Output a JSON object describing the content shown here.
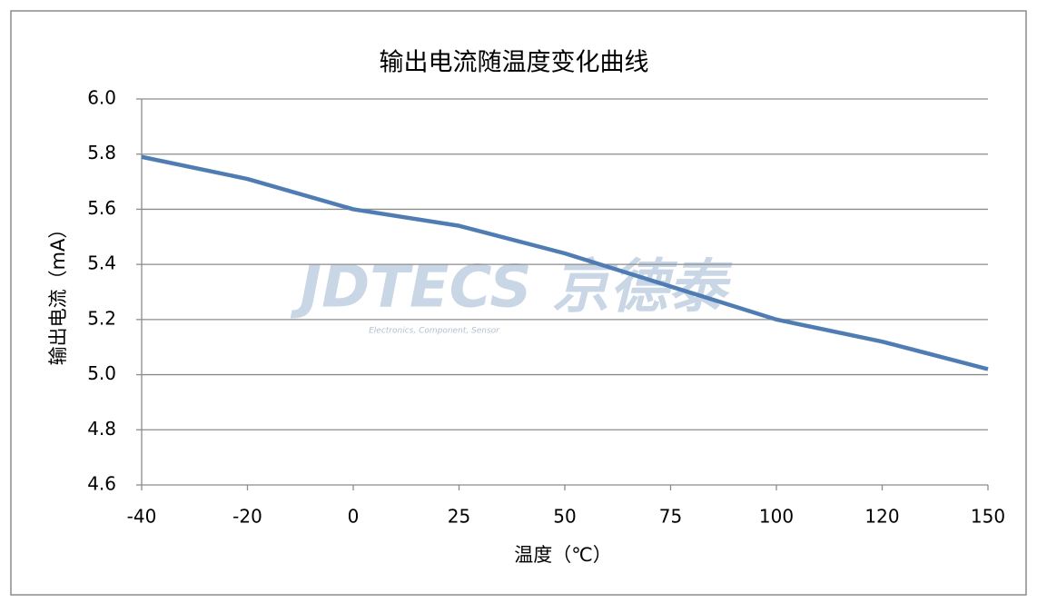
{
  "chart_data": {
    "type": "line",
    "title": "输出电流随温度变化曲线",
    "x_label": "温度（℃）",
    "y_label": "输出电流（mA）",
    "watermark": "JDTECS 京德泰",
    "watermark_subtitle": "Electronics, Component, Sensor",
    "categories": [
      "-40",
      "-20",
      "0",
      "25",
      "50",
      "75",
      "100",
      "120",
      "150"
    ],
    "series": [
      {
        "name": "输出电流",
        "color": "#4f7db3",
        "values": [
          5.79,
          5.71,
          5.6,
          5.54,
          5.44,
          5.32,
          5.2,
          5.12,
          5.02
        ]
      }
    ],
    "ylim": [
      4.6,
      6.0
    ],
    "yticks": [
      4.6,
      4.8,
      {
        "value": 5,
        "label": "5.0"
      },
      5.2,
      5.4,
      5.6,
      5.8,
      {
        "value": 6,
        "label": "6.0"
      }
    ],
    "grid": true
  }
}
